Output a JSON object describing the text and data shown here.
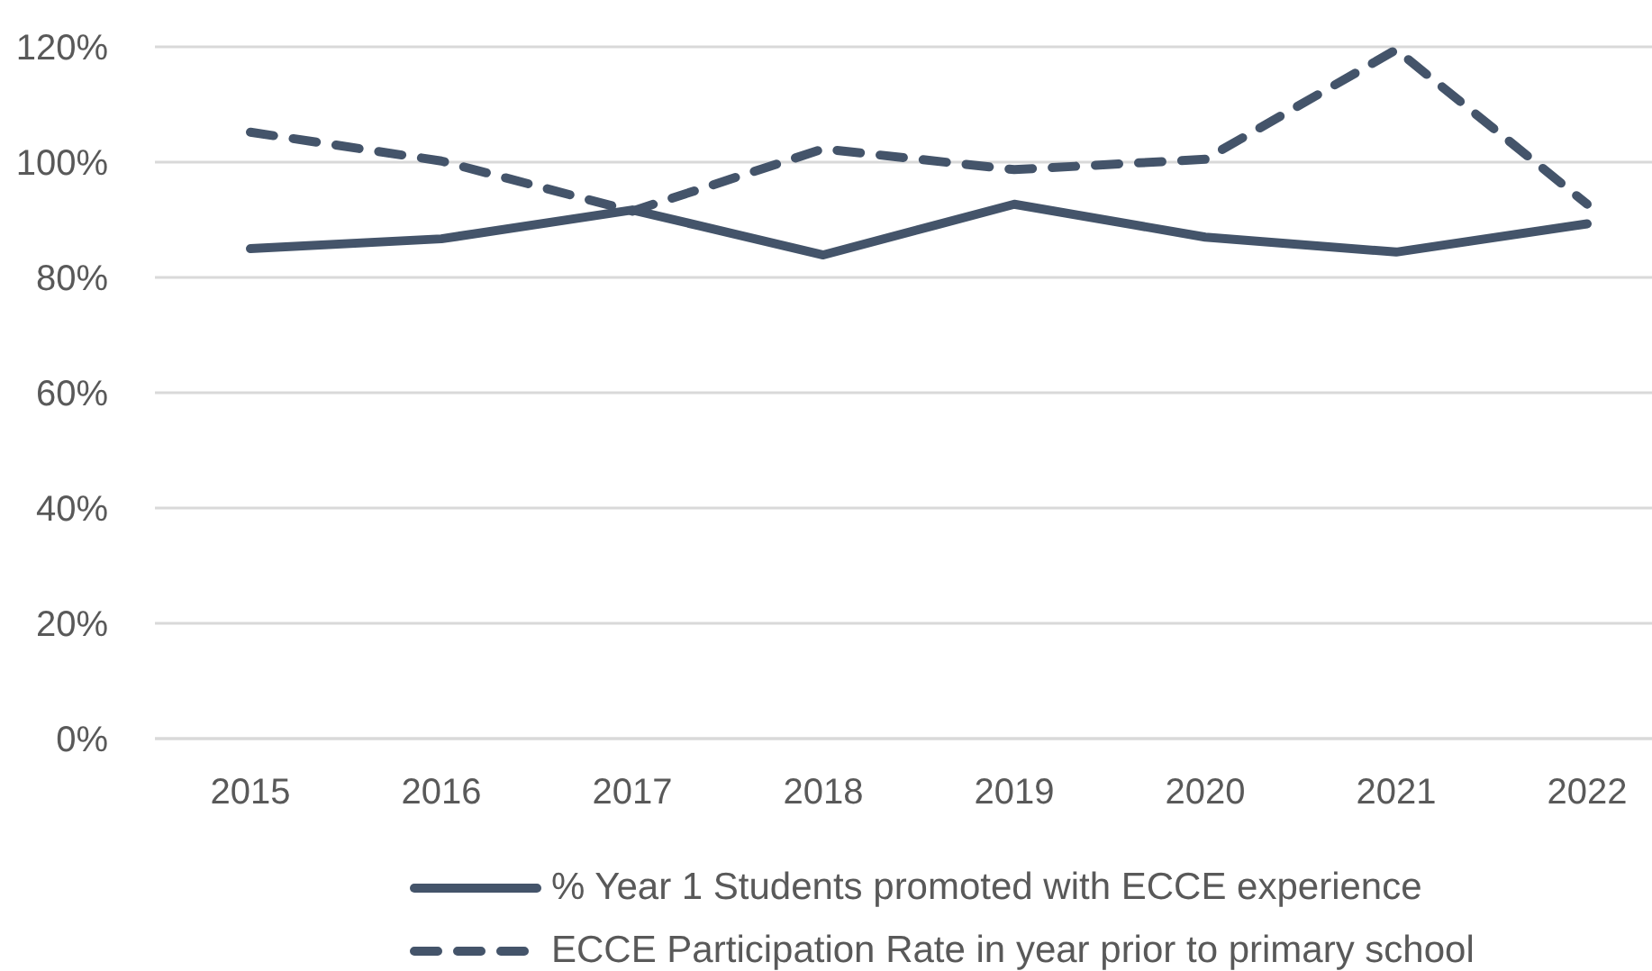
{
  "chart_data": {
    "type": "line",
    "categories": [
      "2015",
      "2016",
      "2017",
      "2018",
      "2019",
      "2020",
      "2021",
      "2022"
    ],
    "series": [
      {
        "name": "% Year 1 Students promoted with ECCE experience",
        "color": "#44546a",
        "line_style": "solid",
        "values": [
          85,
          86.7,
          91.7,
          83.9,
          92.7,
          87,
          84.4,
          89.3
        ]
      },
      {
        "name": "ECCE Participation Rate in year prior to primary school",
        "color": "#44546a",
        "line_style": "dashed",
        "values": [
          105.2,
          100.2,
          91.5,
          102.3,
          98.7,
          100.5,
          119.5,
          92.7
        ]
      }
    ],
    "ylim": [
      0,
      120
    ],
    "yticks": [
      {
        "value": 0,
        "label": "0%"
      },
      {
        "value": 20,
        "label": "20%"
      },
      {
        "value": 40,
        "label": "40%"
      },
      {
        "value": 60,
        "label": "60%"
      },
      {
        "value": 80,
        "label": "80%"
      },
      {
        "value": 100,
        "label": "100%"
      },
      {
        "value": 120,
        "label": "120%"
      }
    ],
    "grid": "y",
    "legend": "bottom"
  }
}
